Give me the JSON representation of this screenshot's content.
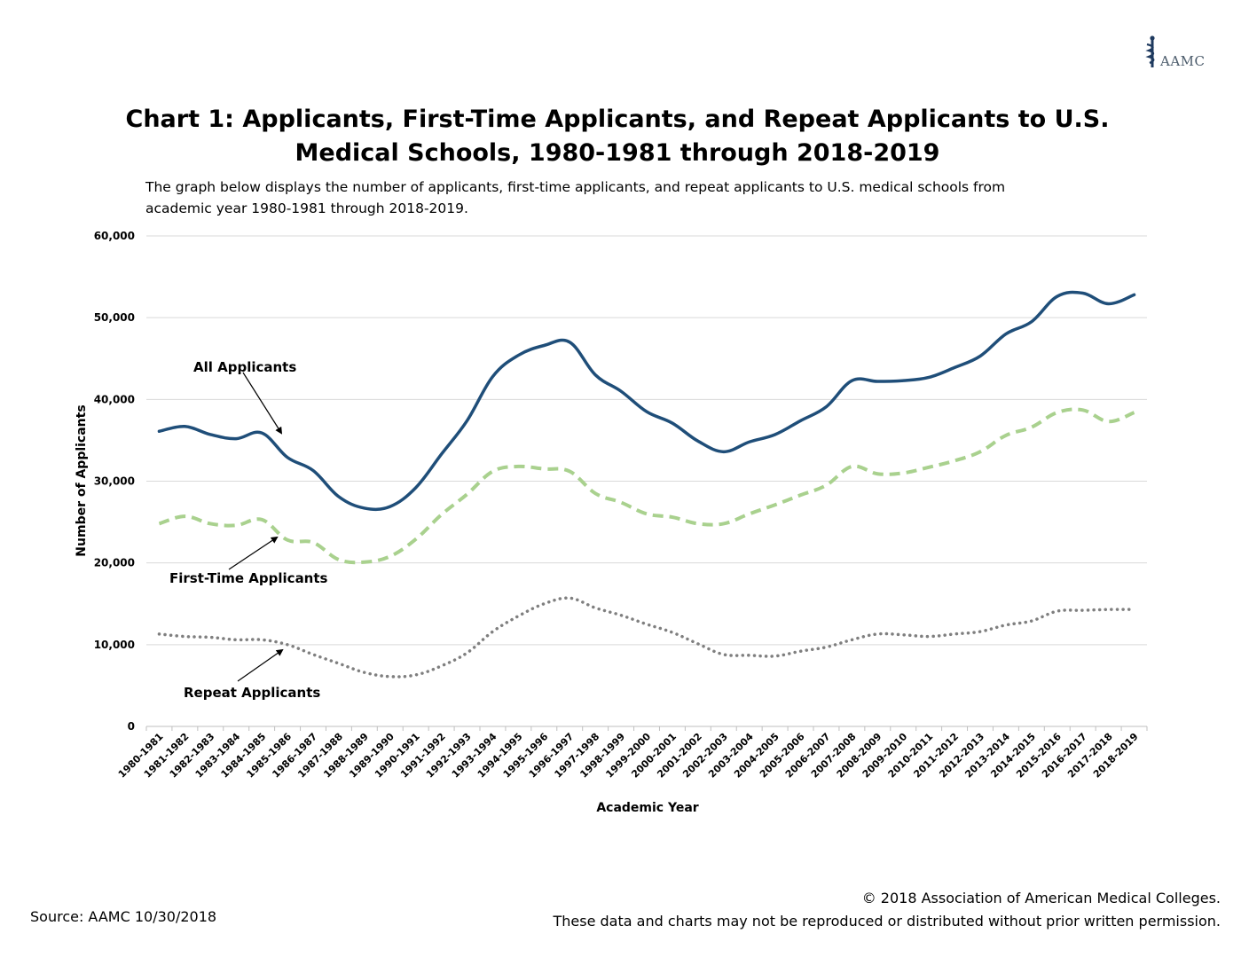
{
  "header": {
    "logo_text": "AAMC",
    "title_line1": "Chart 1: Applicants, First-Time Applicants, and Repeat Applicants to U.S.",
    "title_line2": "Medical Schools, 1980-1981 through 2018-2019",
    "subtitle_line1": "The graph below displays the number of applicants, first-time applicants, and repeat applicants  to U.S. medical schools from",
    "subtitle_line2": "academic year 1980-1981 through 2018-2019."
  },
  "footer": {
    "source": "Source: AAMC 10/30/2018",
    "copyright": "© 2018 Association of American Medical Colleges.",
    "permission": "These data and charts may not be reproduced or distributed without prior written permission."
  },
  "chart_data": {
    "type": "line",
    "xlabel": "Academic Year",
    "ylabel": "Number of Applicants",
    "ylim": [
      0,
      60000
    ],
    "yticks": [
      0,
      10000,
      20000,
      30000,
      40000,
      50000,
      60000
    ],
    "ytick_labels": [
      "0",
      "10,000",
      "20,000",
      "30,000",
      "40,000",
      "50,000",
      "60,000"
    ],
    "grid": true,
    "categories": [
      "1980-1981",
      "1981-1982",
      "1982-1983",
      "1983-1984",
      "1984-1985",
      "1985-1986",
      "1986-1987",
      "1987-1988",
      "1988-1989",
      "1989-1990",
      "1990-1991",
      "1991-1992",
      "1992-1993",
      "1993-1994",
      "1994-1995",
      "1995-1996",
      "1996-1997",
      "1997-1998",
      "1998-1999",
      "1999-2000",
      "2000-2001",
      "2001-2002",
      "2002-2003",
      "2003-2004",
      "2004-2005",
      "2005-2006",
      "2006-2007",
      "2007-2008",
      "2008-2009",
      "2009-2010",
      "2010-2011",
      "2011-2012",
      "2012-2013",
      "2013-2014",
      "2014-2015",
      "2015-2016",
      "2016-2017",
      "2017-2018",
      "2018-2019"
    ],
    "series": [
      {
        "name": "All Applicants",
        "color": "#1f4e79",
        "style": "solid",
        "values": [
          36100,
          36700,
          35700,
          35200,
          35900,
          32900,
          31300,
          28100,
          26700,
          26900,
          29200,
          33300,
          37400,
          42800,
          45400,
          46600,
          47000,
          43000,
          41000,
          38500,
          37100,
          34900,
          33600,
          34800,
          35700,
          37400,
          39100,
          42300,
          42200,
          42300,
          42700,
          43900,
          45300,
          48000,
          49500,
          52600,
          53000,
          51700,
          52800
        ]
      },
      {
        "name": "First-Time Applicants",
        "color": "#a9d18e",
        "style": "dashed",
        "values": [
          24800,
          25700,
          24800,
          24600,
          25300,
          22800,
          22500,
          20400,
          20100,
          20800,
          22900,
          25900,
          28400,
          31200,
          31800,
          31500,
          31200,
          28500,
          27400,
          26000,
          25600,
          24800,
          24800,
          26000,
          27100,
          28300,
          29500,
          31800,
          30900,
          31000,
          31700,
          32500,
          33600,
          35600,
          36600,
          38400,
          38700,
          37300,
          38400
        ]
      },
      {
        "name": "Repeat Applicants",
        "color": "#7f7f7f",
        "style": "dotted",
        "values": [
          11300,
          11000,
          10900,
          10600,
          10600,
          10000,
          8800,
          7700,
          6600,
          6100,
          6300,
          7400,
          9000,
          11600,
          13500,
          15000,
          15700,
          14500,
          13600,
          12500,
          11500,
          10100,
          8800,
          8700,
          8600,
          9200,
          9700,
          10600,
          11300,
          11200,
          11000,
          11300,
          11600,
          12400,
          12900,
          14100,
          14200,
          14300,
          14300
        ]
      }
    ],
    "annotations": [
      {
        "text": "All Applicants",
        "series": "All Applicants"
      },
      {
        "text": "First-Time Applicants",
        "series": "First-Time Applicants"
      },
      {
        "text": "Repeat Applicants",
        "series": "Repeat Applicants"
      }
    ]
  }
}
